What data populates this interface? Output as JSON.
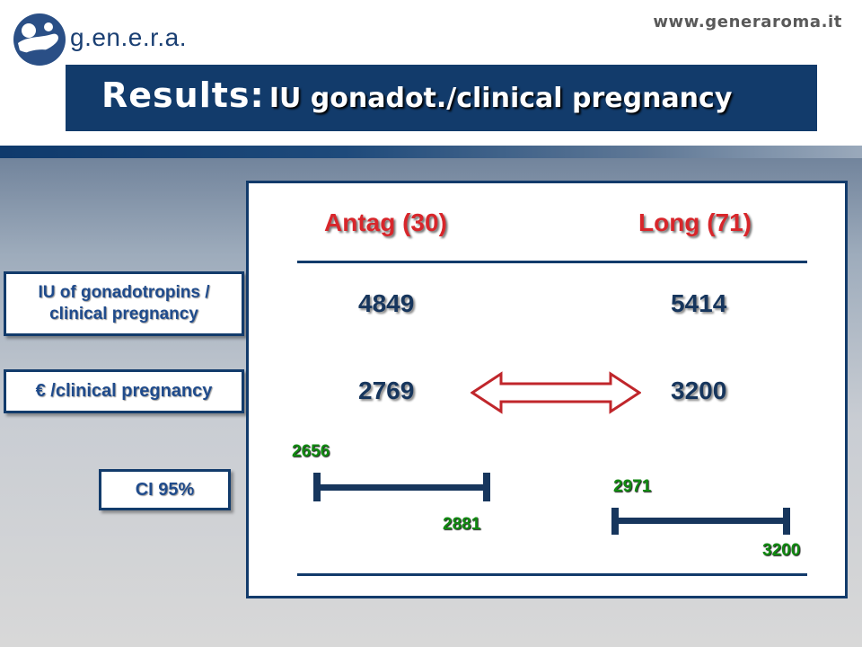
{
  "header": {
    "logo_icon": "genera-logo-icon",
    "logo_text": "g.en.e.r.a.",
    "url": "www.generaroma.it"
  },
  "title": {
    "main": "Results",
    "separator": ":",
    "sub": "IU gonadot./clinical pregnancy"
  },
  "row_labels": {
    "iu_line1": "IU of gonadotropins /",
    "iu_line2": "clinical pregnancy",
    "euro": "€ /clinical pregnancy",
    "ci": "CI 95%"
  },
  "table": {
    "columns": [
      "Antag (30)",
      "Long (71)"
    ],
    "iu_values": [
      "4849",
      "5414"
    ],
    "euro_values": [
      "2769",
      "3200"
    ],
    "comparison_icon": "double-arrow-icon",
    "ci": [
      {
        "low": "2656",
        "high": "2881"
      },
      {
        "low": "2971",
        "high": "3200"
      }
    ]
  },
  "colors": {
    "navy": "#123b6b",
    "header_red": "#d8262b",
    "ci_green": "#118a11",
    "arrow_red": "#c0262b"
  }
}
